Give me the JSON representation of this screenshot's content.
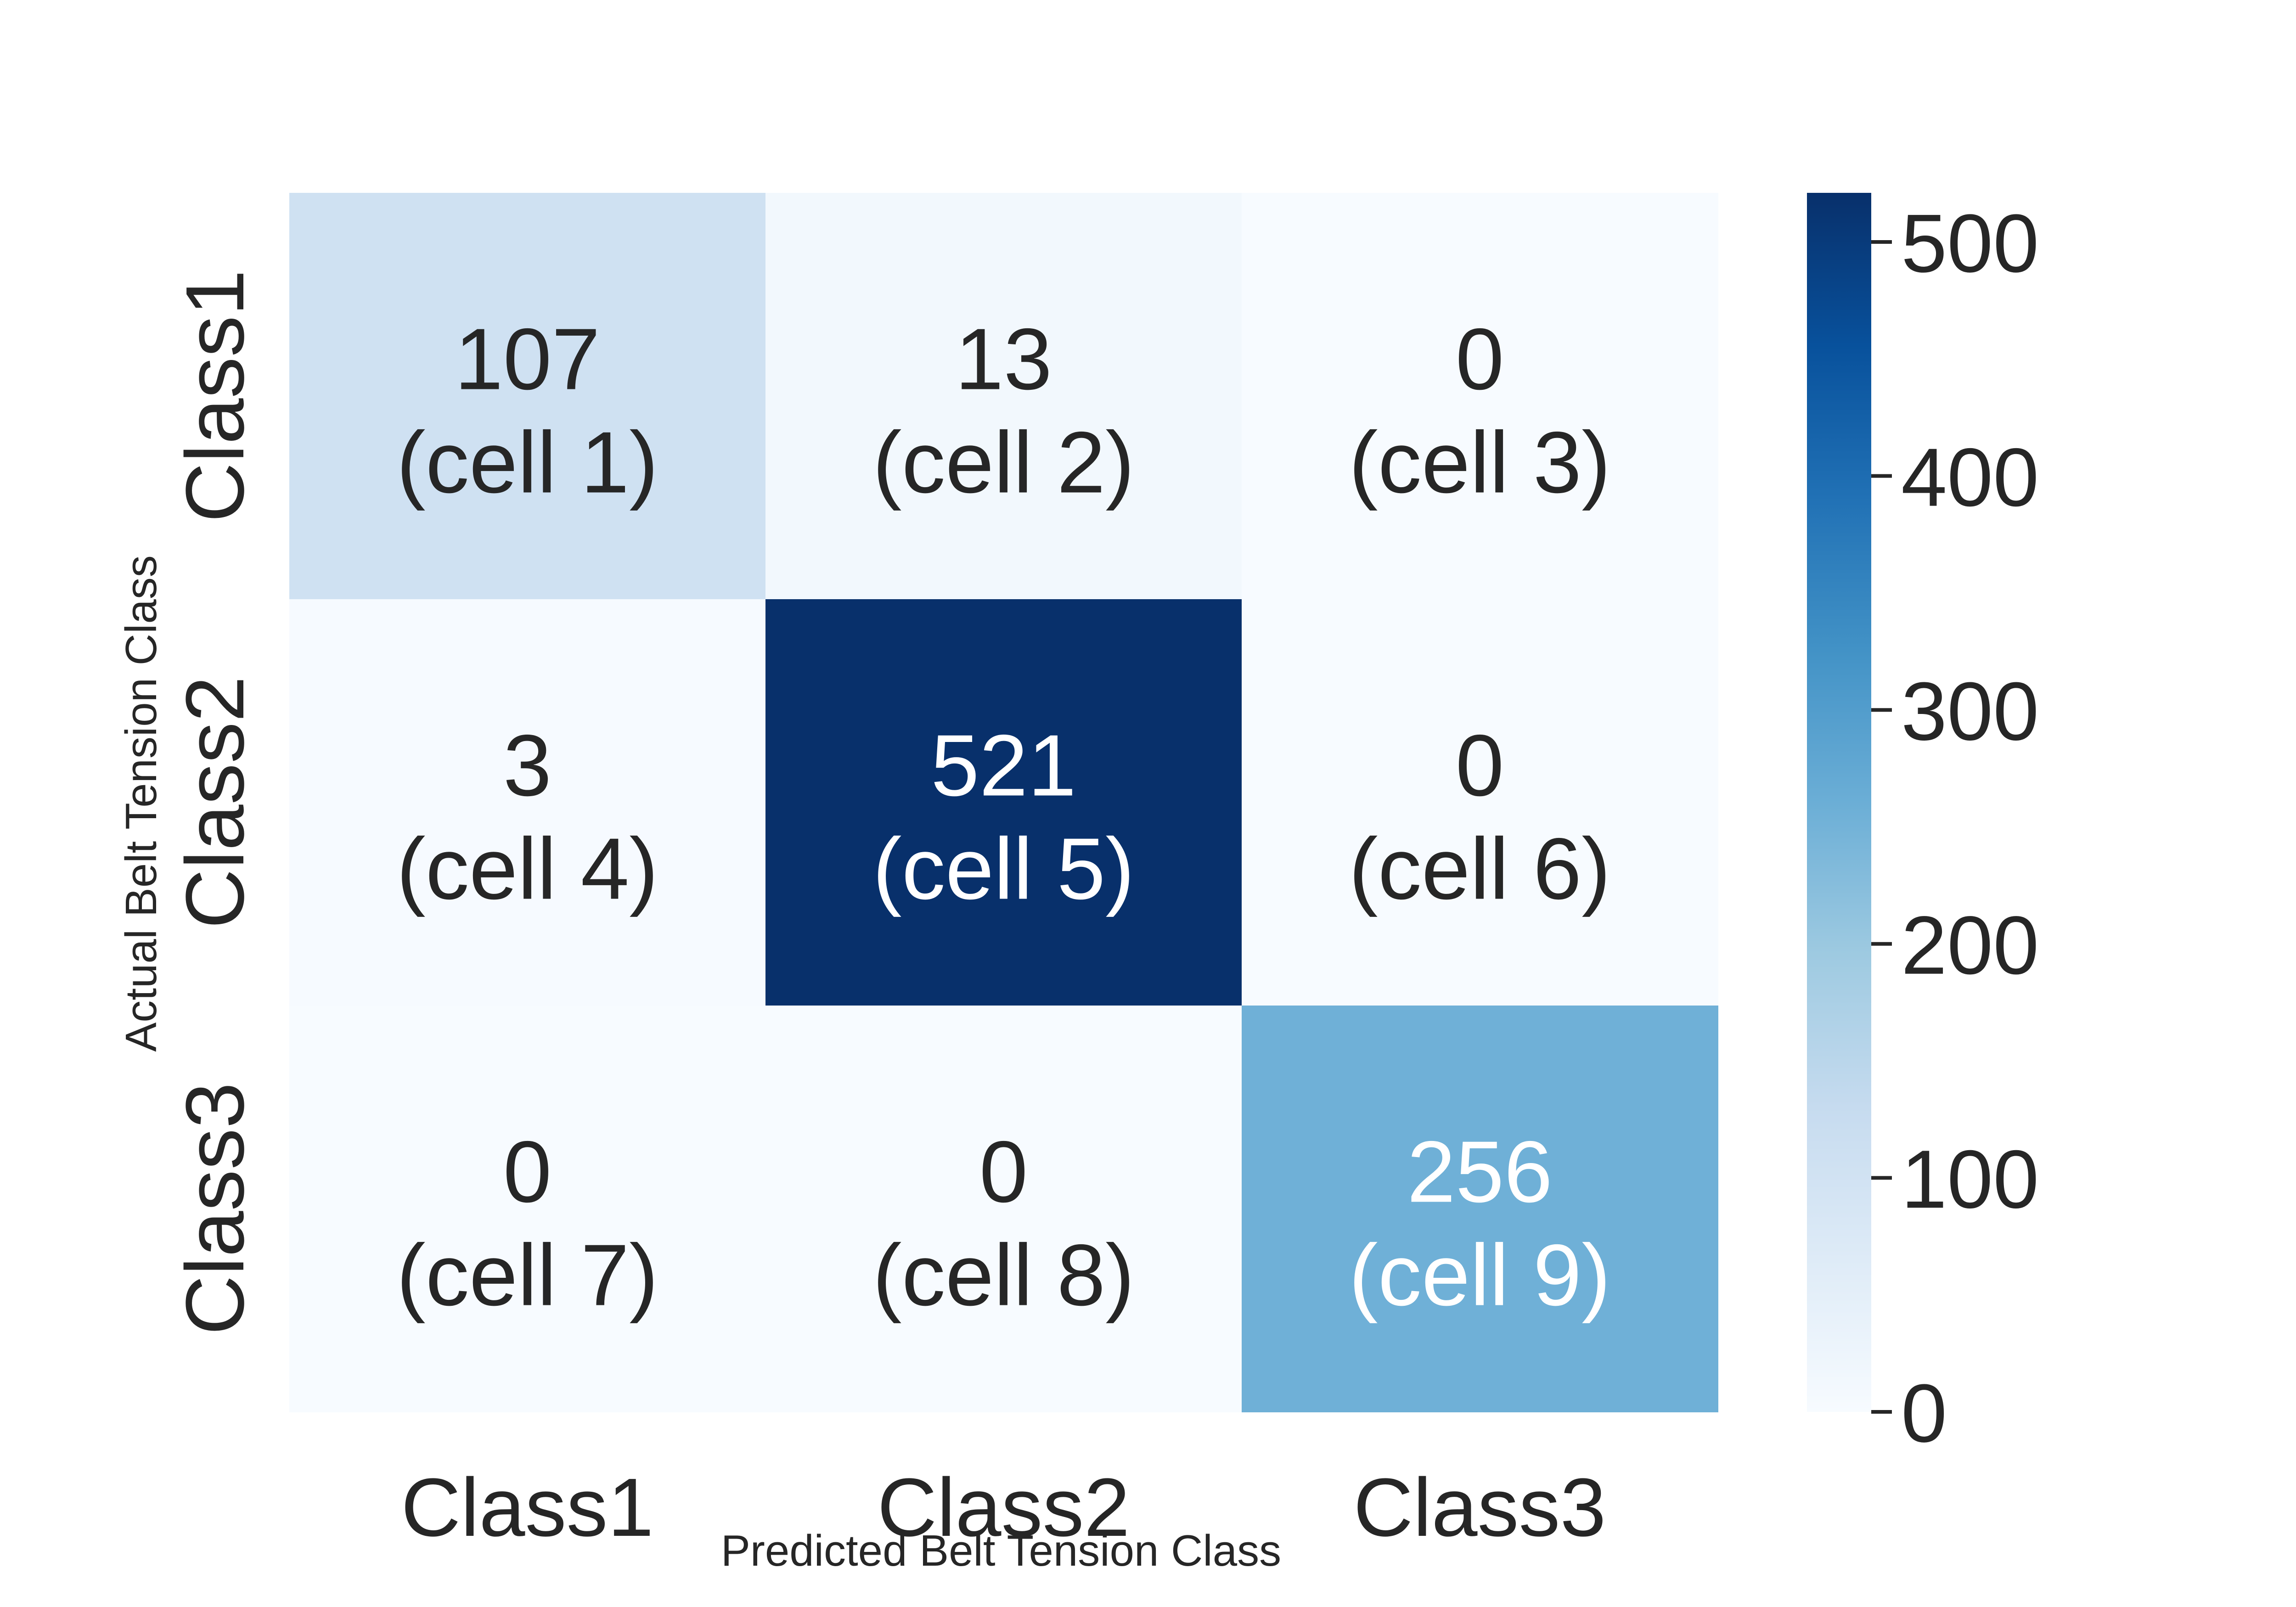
{
  "chart_data": {
    "type": "heatmap",
    "title": "",
    "xlabel": "Predicted Belt Tension Class",
    "ylabel": "Actual Belt Tension Class",
    "x_categories": [
      "Class1",
      "Class2",
      "Class3"
    ],
    "y_categories": [
      "Class1",
      "Class2",
      "Class3"
    ],
    "values": [
      [
        107,
        13,
        0
      ],
      [
        3,
        521,
        0
      ],
      [
        0,
        0,
        256
      ]
    ],
    "cell_labels": [
      [
        "(cell 1)",
        "(cell 2)",
        "(cell 3)"
      ],
      [
        "(cell 4)",
        "(cell 5)",
        "(cell 6)"
      ],
      [
        "(cell 7)",
        "(cell 8)",
        "(cell 9)"
      ]
    ],
    "colormap": "Blues",
    "colorbar": {
      "range": [
        0,
        521
      ],
      "ticks": [
        0,
        100,
        200,
        300,
        400,
        500
      ]
    },
    "colors": {
      "text_dark": "#262626",
      "text_light": "#ffffff"
    }
  }
}
